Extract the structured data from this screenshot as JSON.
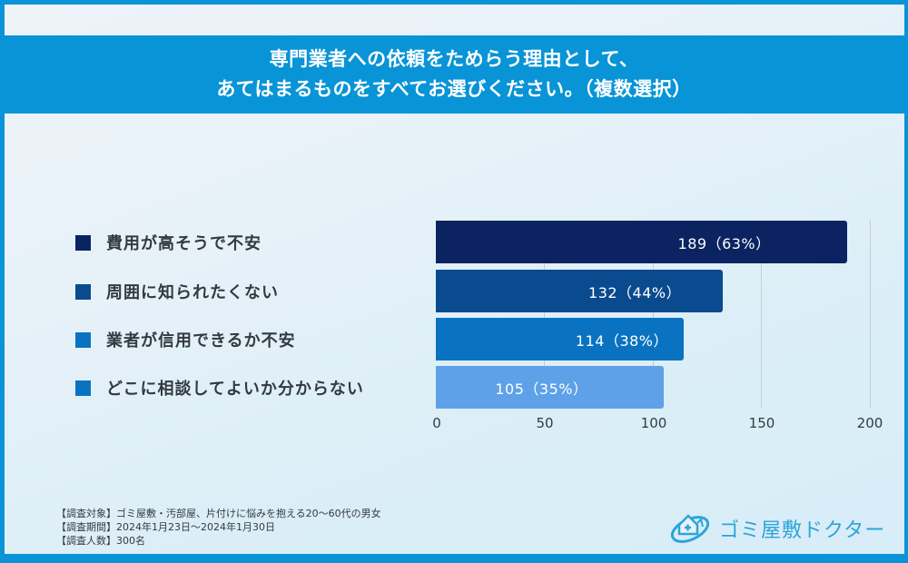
{
  "title": {
    "line1": "専門業者への依頼をためらう理由として、",
    "line2": "あてはまるものをすべてお選びください。（複数選択）"
  },
  "colors": {
    "frame": "#0894d6",
    "bar1": "#0b2461",
    "bar2": "#0a4a8f",
    "bar3": "#0a73c1",
    "bar4": "#5ea1e8",
    "legend4": "#0a73c1"
  },
  "chart_data": {
    "type": "bar",
    "orientation": "horizontal",
    "title": "専門業者への依頼をためらう理由として、あてはまるものをすべてお選びください。（複数選択）",
    "categories": [
      "費用が高そうで不安",
      "周囲に知られたくない",
      "業者が信用できるか不安",
      "どこに相談してよいか分からない"
    ],
    "values": [
      189,
      132,
      114,
      105
    ],
    "percentages": [
      63,
      44,
      38,
      35
    ],
    "data_labels": [
      "189（63%）",
      "132（44%）",
      "114（38%）",
      "105（35%）"
    ],
    "xlabel": "",
    "ylabel": "",
    "xlim": [
      0,
      200
    ],
    "x_ticks": [
      "0",
      "50",
      "100",
      "150",
      "200"
    ],
    "grid": true,
    "legend_position": "left"
  },
  "footnote": {
    "target": "【調査対象】ゴミ屋敷・汚部屋、片付けに悩みを抱える20〜60代の男女",
    "period": "【調査期間】2024年1月23日〜2024年1月30日",
    "respondents": "【調査人数】300名"
  },
  "logo": {
    "text": "ゴミ屋敷ドクター",
    "icon": "house-medical-icon"
  }
}
